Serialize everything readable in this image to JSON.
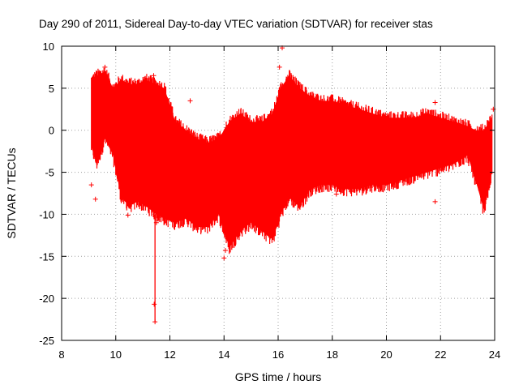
{
  "chart_data": {
    "type": "scatter",
    "title": "Day 290 of 2011, Sidereal Day-to-day VTEC variation (SDTVAR) for receiver stas",
    "xlabel": "GPS time / hours",
    "ylabel": "SDTVAR / TECUs",
    "xlim": [
      8,
      24
    ],
    "ylim": [
      -25,
      10
    ],
    "xticks": [
      "8",
      "10",
      "12",
      "14",
      "16",
      "18",
      "20",
      "22",
      "24"
    ],
    "yticks": [
      "10",
      "5",
      "0",
      "-5",
      "-10",
      "-15",
      "-20",
      "-25"
    ],
    "grid": true,
    "marker": "+",
    "series_color": "#ff0000",
    "series": [
      {
        "name": "SDTVAR",
        "envelope_x": [
          9.1,
          9.3,
          9.6,
          9.9,
          10.2,
          10.5,
          10.8,
          11.1,
          11.5,
          11.8,
          12.2,
          12.6,
          13.0,
          13.4,
          13.8,
          14.2,
          14.6,
          15.0,
          15.4,
          15.8,
          16.1,
          16.4,
          16.8,
          17.2,
          17.6,
          18.0,
          18.5,
          19.0,
          19.5,
          20.0,
          20.5,
          21.0,
          21.5,
          22.0,
          22.5,
          23.0,
          23.3,
          23.6,
          23.9
        ],
        "envelope_upper": [
          6.0,
          6.5,
          7.0,
          5.0,
          6.0,
          5.5,
          5.5,
          6.0,
          5.5,
          5.0,
          1.0,
          0.0,
          -1.0,
          -1.5,
          -1.0,
          1.0,
          2.0,
          1.0,
          1.0,
          2.0,
          5.0,
          6.5,
          5.0,
          4.0,
          3.5,
          3.5,
          3.0,
          2.5,
          2.0,
          1.5,
          1.5,
          1.5,
          2.0,
          1.5,
          1.0,
          0.5,
          0.0,
          0.0,
          1.5
        ],
        "envelope_lower": [
          -2.0,
          -4.0,
          -1.0,
          -3.0,
          -8.0,
          -9.0,
          -8.5,
          -9.0,
          -10.0,
          -10.5,
          -11.0,
          -10.5,
          -11.5,
          -11.5,
          -10.0,
          -14.0,
          -12.0,
          -11.0,
          -12.0,
          -13.0,
          -10.0,
          -8.0,
          -9.0,
          -7.0,
          -6.5,
          -6.5,
          -7.0,
          -7.0,
          -6.5,
          -6.5,
          -6.0,
          -5.5,
          -5.0,
          -4.5,
          -4.0,
          -3.0,
          -6.0,
          -9.5,
          -5.0
        ],
        "outliers": [
          {
            "x": 9.1,
            "y": -6.5
          },
          {
            "x": 9.25,
            "y": -8.2
          },
          {
            "x": 9.6,
            "y": 7.5
          },
          {
            "x": 10.45,
            "y": -10.1
          },
          {
            "x": 11.4,
            "y": 6.5
          },
          {
            "x": 11.42,
            "y": -20.7
          },
          {
            "x": 11.45,
            "y": -22.8
          },
          {
            "x": 11.5,
            "y": -11.0
          },
          {
            "x": 12.75,
            "y": 3.5
          },
          {
            "x": 14.0,
            "y": -15.2
          },
          {
            "x": 14.05,
            "y": -14.3
          },
          {
            "x": 16.05,
            "y": 7.5
          },
          {
            "x": 16.15,
            "y": 9.8
          },
          {
            "x": 18.15,
            "y": -7.6
          },
          {
            "x": 21.8,
            "y": -8.5
          },
          {
            "x": 21.8,
            "y": 3.3
          },
          {
            "x": 23.95,
            "y": 2.5
          }
        ]
      }
    ]
  }
}
